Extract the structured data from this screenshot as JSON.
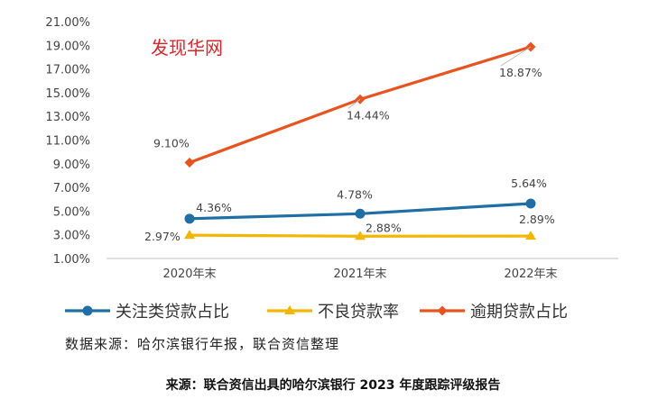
{
  "chart_data": {
    "type": "line",
    "watermark": "发现华网",
    "categories": [
      "2020年末",
      "2021年末",
      "2022年末"
    ],
    "y_ticks": [
      "1.00%",
      "3.00%",
      "5.00%",
      "7.00%",
      "9.00%",
      "11.00%",
      "13.00%",
      "15.00%",
      "17.00%",
      "19.00%",
      "21.00%"
    ],
    "ylim": [
      1,
      21
    ],
    "series": [
      {
        "name": "关注类贷款占比",
        "color": "#1f6fa6",
        "marker": "circle",
        "values": [
          4.36,
          4.78,
          5.64
        ],
        "labels": [
          "4.36%",
          "4.78%",
          "5.64%"
        ]
      },
      {
        "name": "不良贷款率",
        "color": "#f2b705",
        "marker": "triangle",
        "values": [
          2.97,
          2.88,
          2.89
        ],
        "labels": [
          "2.97%",
          "2.88%",
          "2.89%"
        ]
      },
      {
        "name": "逾期贷款占比",
        "color": "#e8531f",
        "marker": "diamond",
        "values": [
          9.1,
          14.44,
          18.87
        ],
        "labels": [
          "9.10%",
          "14.44%",
          "18.87%"
        ]
      }
    ],
    "source_note": "数据来源：哈尔滨银行年报，联合资信整理"
  },
  "caption": "来源：联合资信出具的哈尔滨银行 2023 年度跟踪评级报告"
}
